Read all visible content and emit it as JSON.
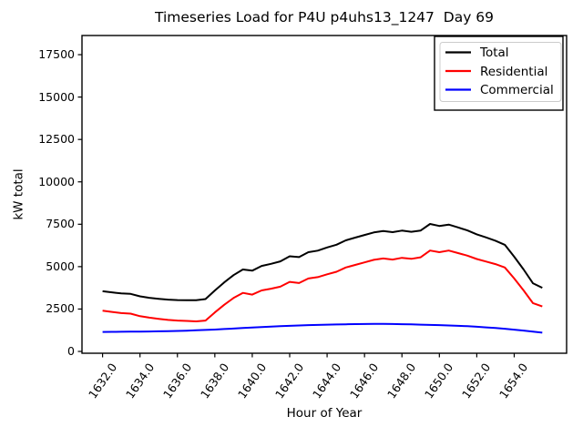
{
  "chart_data": {
    "type": "line",
    "title": "Timeseries Load for P4U p4uhs13_1247  Day 69",
    "xlabel": "Hour of Year",
    "ylabel": "kW total",
    "grid": false,
    "xlim": [
      1630.9,
      1656.8
    ],
    "ylim": [
      -107,
      18630
    ],
    "xticks": {
      "values": [
        1632,
        1634,
        1636,
        1638,
        1640,
        1642,
        1644,
        1646,
        1648,
        1650,
        1652,
        1654
      ],
      "labels": [
        "1632.0",
        "1634.0",
        "1636.0",
        "1638.0",
        "1640.0",
        "1642.0",
        "1644.0",
        "1646.0",
        "1648.0",
        "1650.0",
        "1652.0",
        "1654.0"
      ]
    },
    "yticks": {
      "values": [
        0,
        2500,
        5000,
        7500,
        10000,
        12500,
        15000,
        17500
      ],
      "labels": [
        "0",
        "2500",
        "5000",
        "7500",
        "10000",
        "12500",
        "15000",
        "17500"
      ]
    },
    "x": [
      1632.0,
      1632.5,
      1633.0,
      1633.5,
      1634.0,
      1634.5,
      1635.0,
      1635.5,
      1636.0,
      1636.5,
      1637.0,
      1637.5,
      1638.0,
      1638.5,
      1639.0,
      1639.5,
      1640.0,
      1640.5,
      1641.0,
      1641.5,
      1642.0,
      1642.5,
      1643.0,
      1643.5,
      1644.0,
      1644.5,
      1645.0,
      1645.5,
      1646.0,
      1646.5,
      1647.0,
      1647.5,
      1648.0,
      1648.5,
      1649.0,
      1649.5,
      1650.0,
      1650.5,
      1651.0,
      1651.5,
      1652.0,
      1652.5,
      1653.0,
      1653.5,
      1654.0,
      1654.5,
      1655.0,
      1655.5
    ],
    "series": [
      {
        "name": "Total",
        "color": "#000000",
        "values": [
          3550,
          3485,
          3420,
          3395,
          3250,
          3165,
          3105,
          3055,
          3030,
          3025,
          3015,
          3085,
          3590,
          4070,
          4500,
          4830,
          4760,
          5040,
          5165,
          5310,
          5610,
          5560,
          5850,
          5945,
          6130,
          6290,
          6550,
          6710,
          6865,
          7020,
          7100,
          7035,
          7125,
          7055,
          7130,
          7515,
          7400,
          7480,
          7310,
          7135,
          6905,
          6720,
          6530,
          6285,
          5585,
          4830,
          4020,
          3755
        ]
      },
      {
        "name": "Residential",
        "color": "#ff0000",
        "values": [
          2400,
          2330,
          2260,
          2230,
          2080,
          1990,
          1920,
          1860,
          1820,
          1800,
          1770,
          1820,
          2300,
          2750,
          3150,
          3450,
          3350,
          3600,
          3700,
          3820,
          4100,
          4030,
          4300,
          4380,
          4550,
          4700,
          4950,
          5100,
          5250,
          5400,
          5480,
          5420,
          5520,
          5460,
          5550,
          5950,
          5850,
          5950,
          5800,
          5650,
          5450,
          5300,
          5150,
          4950,
          4300,
          3600,
          2850,
          2650
        ]
      },
      {
        "name": "Commercial",
        "color": "#0000ff",
        "values": [
          1150,
          1155,
          1160,
          1165,
          1170,
          1175,
          1185,
          1195,
          1210,
          1225,
          1245,
          1265,
          1290,
          1320,
          1350,
          1380,
          1410,
          1440,
          1465,
          1490,
          1510,
          1530,
          1550,
          1565,
          1580,
          1590,
          1600,
          1610,
          1615,
          1620,
          1620,
          1615,
          1605,
          1595,
          1580,
          1565,
          1550,
          1530,
          1510,
          1485,
          1455,
          1420,
          1380,
          1335,
          1285,
          1230,
          1170,
          1105
        ]
      }
    ],
    "legend": {
      "position": "upper right",
      "entries": [
        "Total",
        "Residential",
        "Commercial"
      ]
    }
  }
}
